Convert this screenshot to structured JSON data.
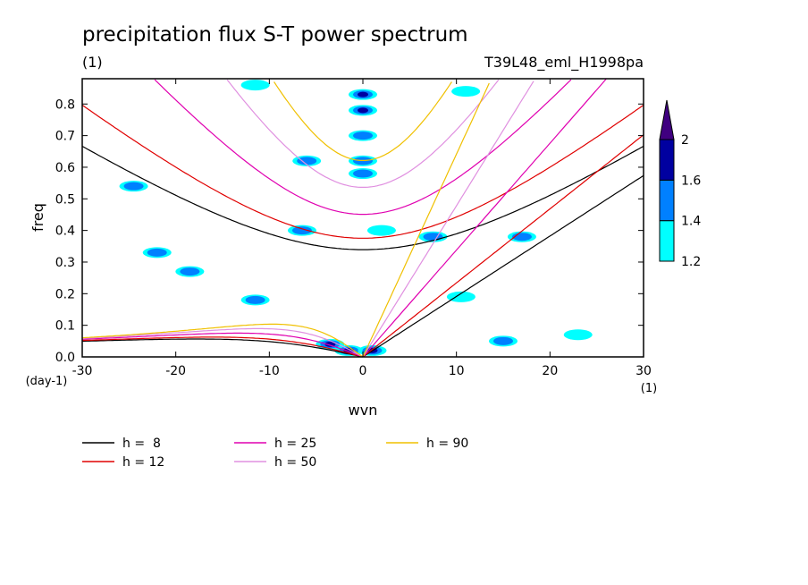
{
  "chart_data": {
    "type": "heatmap",
    "title": "precipitation flux S-T power spectrum",
    "subtitle_left": "(1)",
    "subtitle_right": "T39L48_eml_H1998pa",
    "xlabel": "wvn",
    "ylabel": "freq",
    "x_unit": "(1)",
    "y_unit": "(day-1)",
    "xlim": [
      -30,
      30
    ],
    "ylim": [
      0,
      0.88
    ],
    "xticks": [
      -30,
      -20,
      -10,
      0,
      10,
      20,
      30
    ],
    "xtick_labels": [
      "-30",
      "-20",
      "-10",
      "0",
      "10",
      "20",
      "30"
    ],
    "yticks": [
      0.0,
      0.1,
      0.2,
      0.3,
      0.4,
      0.5,
      0.6,
      0.7,
      0.8
    ],
    "ytick_labels": [
      "0.0",
      "0.1",
      "0.2",
      "0.3",
      "0.4",
      "0.5",
      "0.6",
      "0.7",
      "0.8"
    ],
    "colorbar": {
      "levels": [
        1.2,
        1.4,
        1.6,
        2
      ],
      "labels": [
        "1.2",
        "1.4",
        "1.6",
        "2"
      ],
      "colors": [
        "#00ffff",
        "#0080ff",
        "#0000a0",
        "#400080"
      ]
    },
    "dispersion_curves": [
      {
        "label": "h =  8",
        "h": 8,
        "color": "#000000"
      },
      {
        "label": "h = 12",
        "h": 12,
        "color": "#e00000"
      },
      {
        "label": "h = 25",
        "h": 25,
        "color": "#e000b0"
      },
      {
        "label": "h = 50",
        "h": 50,
        "color": "#e090e0"
      },
      {
        "label": "h = 90",
        "h": 90,
        "color": "#f0c000"
      }
    ],
    "contour_blobs": [
      {
        "x": 2,
        "y": 0.4,
        "lev": 0
      },
      {
        "x": -6.5,
        "y": 0.4,
        "lev": 1
      },
      {
        "x": -22,
        "y": 0.33,
        "lev": 1
      },
      {
        "x": -18.5,
        "y": 0.27,
        "lev": 1
      },
      {
        "x": -24.5,
        "y": 0.54,
        "lev": 1
      },
      {
        "x": -11.5,
        "y": 0.18,
        "lev": 1
      },
      {
        "x": 7.5,
        "y": 0.38,
        "lev": 1
      },
      {
        "x": 17,
        "y": 0.38,
        "lev": 1
      },
      {
        "x": -3.5,
        "y": 0.04,
        "lev": 2
      },
      {
        "x": -1.5,
        "y": 0.02,
        "lev": 2
      },
      {
        "x": 1,
        "y": 0.02,
        "lev": 2
      },
      {
        "x": 15,
        "y": 0.05,
        "lev": 1
      },
      {
        "x": 0,
        "y": 0.83,
        "lev": 2
      },
      {
        "x": 0,
        "y": 0.78,
        "lev": 2
      },
      {
        "x": 0,
        "y": 0.7,
        "lev": 1
      },
      {
        "x": 0,
        "y": 0.62,
        "lev": 1
      },
      {
        "x": 0,
        "y": 0.58,
        "lev": 1
      },
      {
        "x": -6,
        "y": 0.62,
        "lev": 1
      },
      {
        "x": -11.5,
        "y": 0.86,
        "lev": 0
      },
      {
        "x": 11,
        "y": 0.84,
        "lev": 0
      },
      {
        "x": 10.5,
        "y": 0.19,
        "lev": 0
      },
      {
        "x": 23,
        "y": 0.07,
        "lev": 0
      }
    ]
  }
}
